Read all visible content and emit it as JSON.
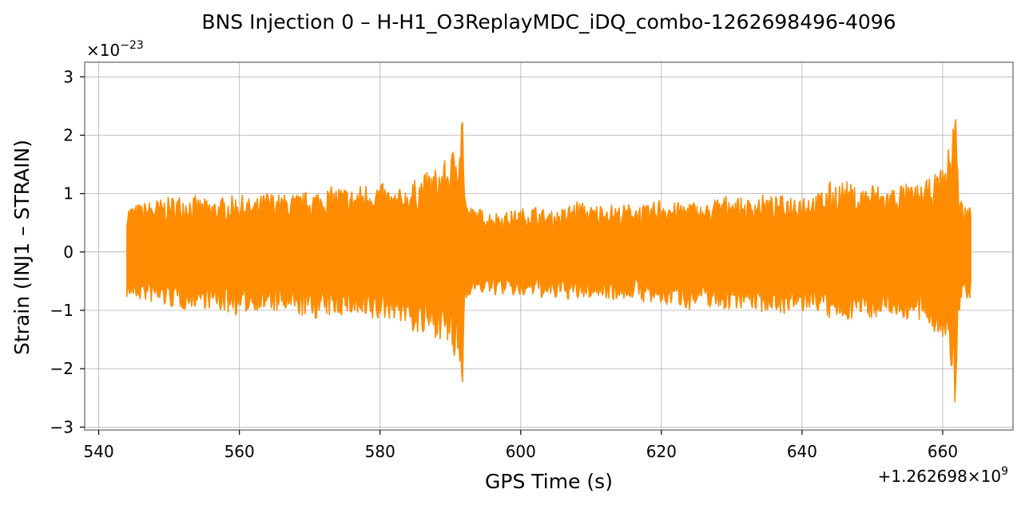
{
  "chart_data": {
    "type": "line",
    "title": "BNS Injection 0 – H-H1_O3ReplayMDC_iDQ_combo-1262698496-4096",
    "xlabel": "GPS Time (s)",
    "ylabel": "Strain (INJ1 – STRAIN)",
    "x_offset_label": "+1.262698×10",
    "x_offset_exp": "9",
    "y_scale_label": "×10",
    "y_scale_exp": "−23",
    "xlim": [
      538,
      670
    ],
    "ylim": [
      -3.05,
      3.25
    ],
    "xticks": [
      540,
      560,
      580,
      600,
      620,
      640,
      660
    ],
    "xtick_labels": [
      "540",
      "560",
      "580",
      "600",
      "620",
      "640",
      "660"
    ],
    "yticks": [
      -3,
      -2,
      -1,
      0,
      1,
      2,
      3
    ],
    "ytick_labels": [
      "−3",
      "−2",
      "−1",
      "0",
      "1",
      "2",
      "3"
    ],
    "grid": true,
    "color": "#ff8c00",
    "series": [
      {
        "name": "",
        "envelope": {
          "x": [
            544,
            546,
            548,
            550,
            552,
            554,
            556,
            558,
            560,
            562,
            564,
            566,
            568,
            570,
            572,
            574,
            576,
            578,
            580,
            582,
            584,
            585.5,
            587,
            588.5,
            590,
            591,
            591.8,
            592,
            592.4,
            594,
            596,
            598,
            600,
            602,
            604,
            606,
            608,
            610,
            612,
            614,
            616,
            618,
            620,
            622,
            624,
            626,
            628,
            630,
            632,
            634,
            636,
            638,
            640,
            642,
            644,
            646,
            648,
            650,
            652,
            654,
            656,
            658,
            659.5,
            660.5,
            661.3,
            661.8,
            662.2,
            662.8,
            664
          ],
          "upper": [
            0.8,
            0.85,
            0.9,
            0.95,
            1.0,
            0.95,
            0.9,
            0.95,
            1.0,
            0.9,
            1.05,
            1.0,
            1.0,
            1.05,
            1.1,
            1.15,
            1.1,
            1.2,
            1.2,
            1.05,
            1.15,
            1.3,
            1.4,
            1.5,
            1.65,
            2.0,
            2.65,
            1.2,
            0.8,
            0.75,
            0.7,
            0.7,
            0.75,
            0.8,
            0.7,
            0.75,
            0.9,
            0.8,
            0.85,
            0.8,
            0.85,
            0.8,
            0.95,
            0.85,
            0.9,
            0.8,
            0.95,
            1.0,
            0.9,
            1.0,
            0.95,
            1.0,
            1.05,
            1.0,
            1.2,
            1.25,
            1.1,
            1.2,
            1.1,
            1.2,
            1.15,
            1.25,
            1.4,
            1.6,
            2.1,
            2.95,
            1.2,
            0.85,
            0.8
          ],
          "lower": [
            -0.8,
            -0.85,
            -0.9,
            -0.95,
            -1.0,
            -0.95,
            -1.0,
            -1.05,
            -1.1,
            -1.0,
            -1.05,
            -1.05,
            -1.1,
            -1.15,
            -1.15,
            -1.1,
            -1.1,
            -1.25,
            -1.2,
            -1.15,
            -1.3,
            -1.5,
            -1.45,
            -1.5,
            -1.7,
            -2.1,
            -2.4,
            -1.0,
            -0.75,
            -0.7,
            -0.75,
            -0.75,
            -0.8,
            -0.75,
            -0.85,
            -0.8,
            -0.85,
            -0.8,
            -0.8,
            -0.85,
            -0.8,
            -0.9,
            -0.95,
            -0.9,
            -1.0,
            -0.9,
            -1.0,
            -1.0,
            -0.95,
            -1.05,
            -1.0,
            -1.1,
            -1.05,
            -1.0,
            -1.2,
            -1.2,
            -1.1,
            -1.15,
            -1.05,
            -1.15,
            -1.2,
            -1.3,
            -1.45,
            -1.6,
            -2.3,
            -2.75,
            -1.1,
            -0.85,
            -0.8
          ]
        }
      }
    ]
  }
}
